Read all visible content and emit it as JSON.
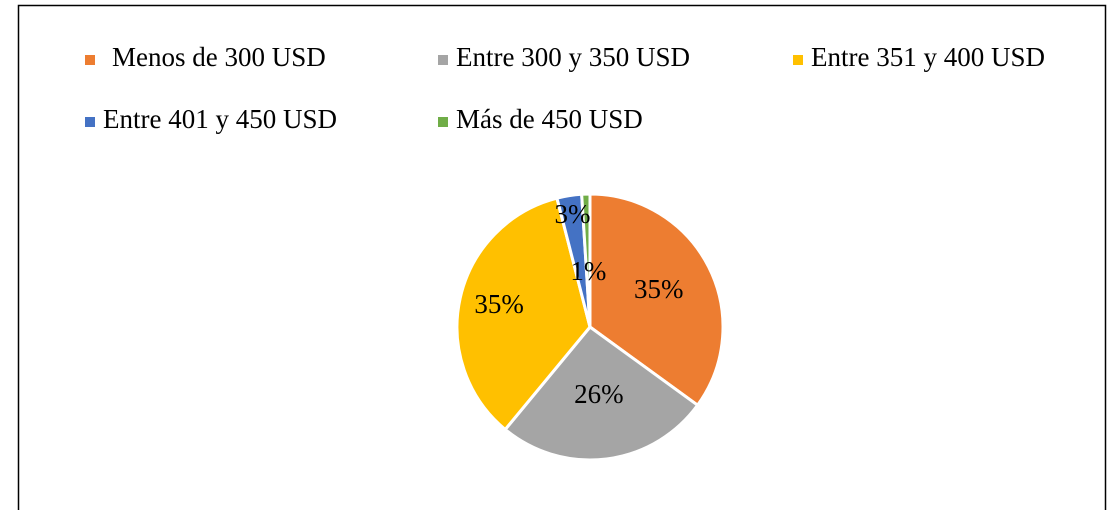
{
  "chart_data": {
    "type": "pie",
    "categories": [
      "Menos de 300 USD",
      "Entre 300 y 350 USD",
      "Entre 351 y 400 USD",
      "Entre 401 y 450 USD",
      "Más de 450 USD"
    ],
    "values": [
      35,
      26,
      35,
      3,
      1
    ],
    "value_labels": [
      "35%",
      "26%",
      "35%",
      "3%",
      "1%"
    ],
    "colors": [
      "#ed7d31",
      "#a5a5a5",
      "#ffc000",
      "#4472c4",
      "#70ad47"
    ],
    "legend": "top"
  }
}
